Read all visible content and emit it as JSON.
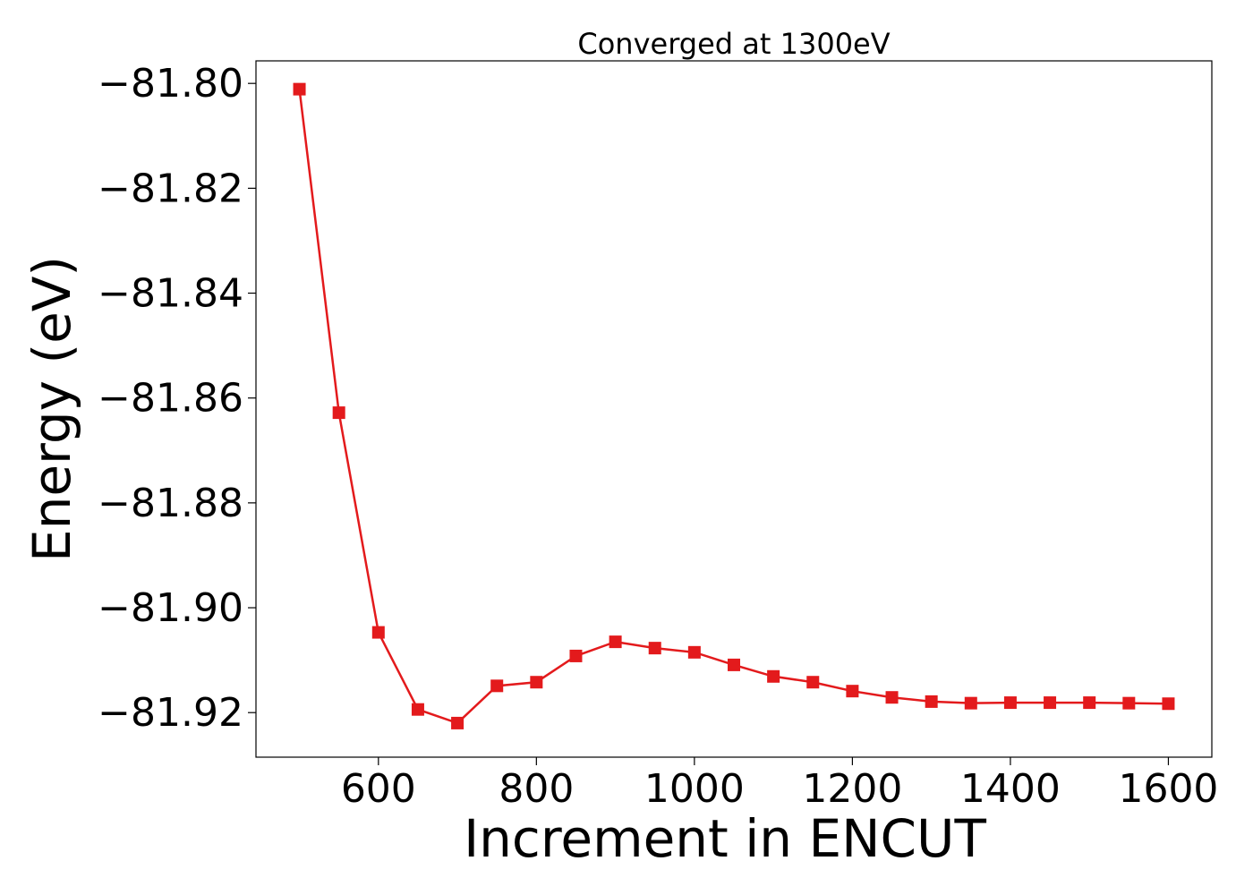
{
  "chart_data": {
    "type": "line",
    "title": "Converged at 1300eV",
    "xlabel": "Increment in ENCUT",
    "ylabel": "Energy (eV)",
    "xlim": [
      445,
      1655
    ],
    "ylim": [
      -81.9285,
      -81.7957
    ],
    "xticks": [
      600,
      800,
      1000,
      1200,
      1400,
      1600
    ],
    "xtick_labels": [
      "600",
      "800",
      "1000",
      "1200",
      "1400",
      "1600"
    ],
    "yticks": [
      -81.8,
      -81.82,
      -81.84,
      -81.86,
      -81.88,
      -81.9,
      -81.92
    ],
    "ytick_labels": [
      "−81.80",
      "−81.82",
      "−81.84",
      "−81.86",
      "−81.88",
      "−81.90",
      "−81.92"
    ],
    "grid": false,
    "marker": "square",
    "series_color": "#e31a1c",
    "x": [
      500,
      550,
      600,
      650,
      700,
      750,
      800,
      850,
      900,
      950,
      1000,
      1050,
      1100,
      1150,
      1200,
      1250,
      1300,
      1350,
      1400,
      1450,
      1500,
      1550,
      1600
    ],
    "y": [
      -81.8011,
      -81.8628,
      -81.9047,
      -81.9194,
      -81.922,
      -81.9149,
      -81.9142,
      -81.9092,
      -81.9065,
      -81.9077,
      -81.9085,
      -81.9109,
      -81.9131,
      -81.9142,
      -81.9159,
      -81.9171,
      -81.9179,
      -81.9182,
      -81.9181,
      -81.9181,
      -81.9181,
      -81.9182,
      -81.9183
    ]
  }
}
